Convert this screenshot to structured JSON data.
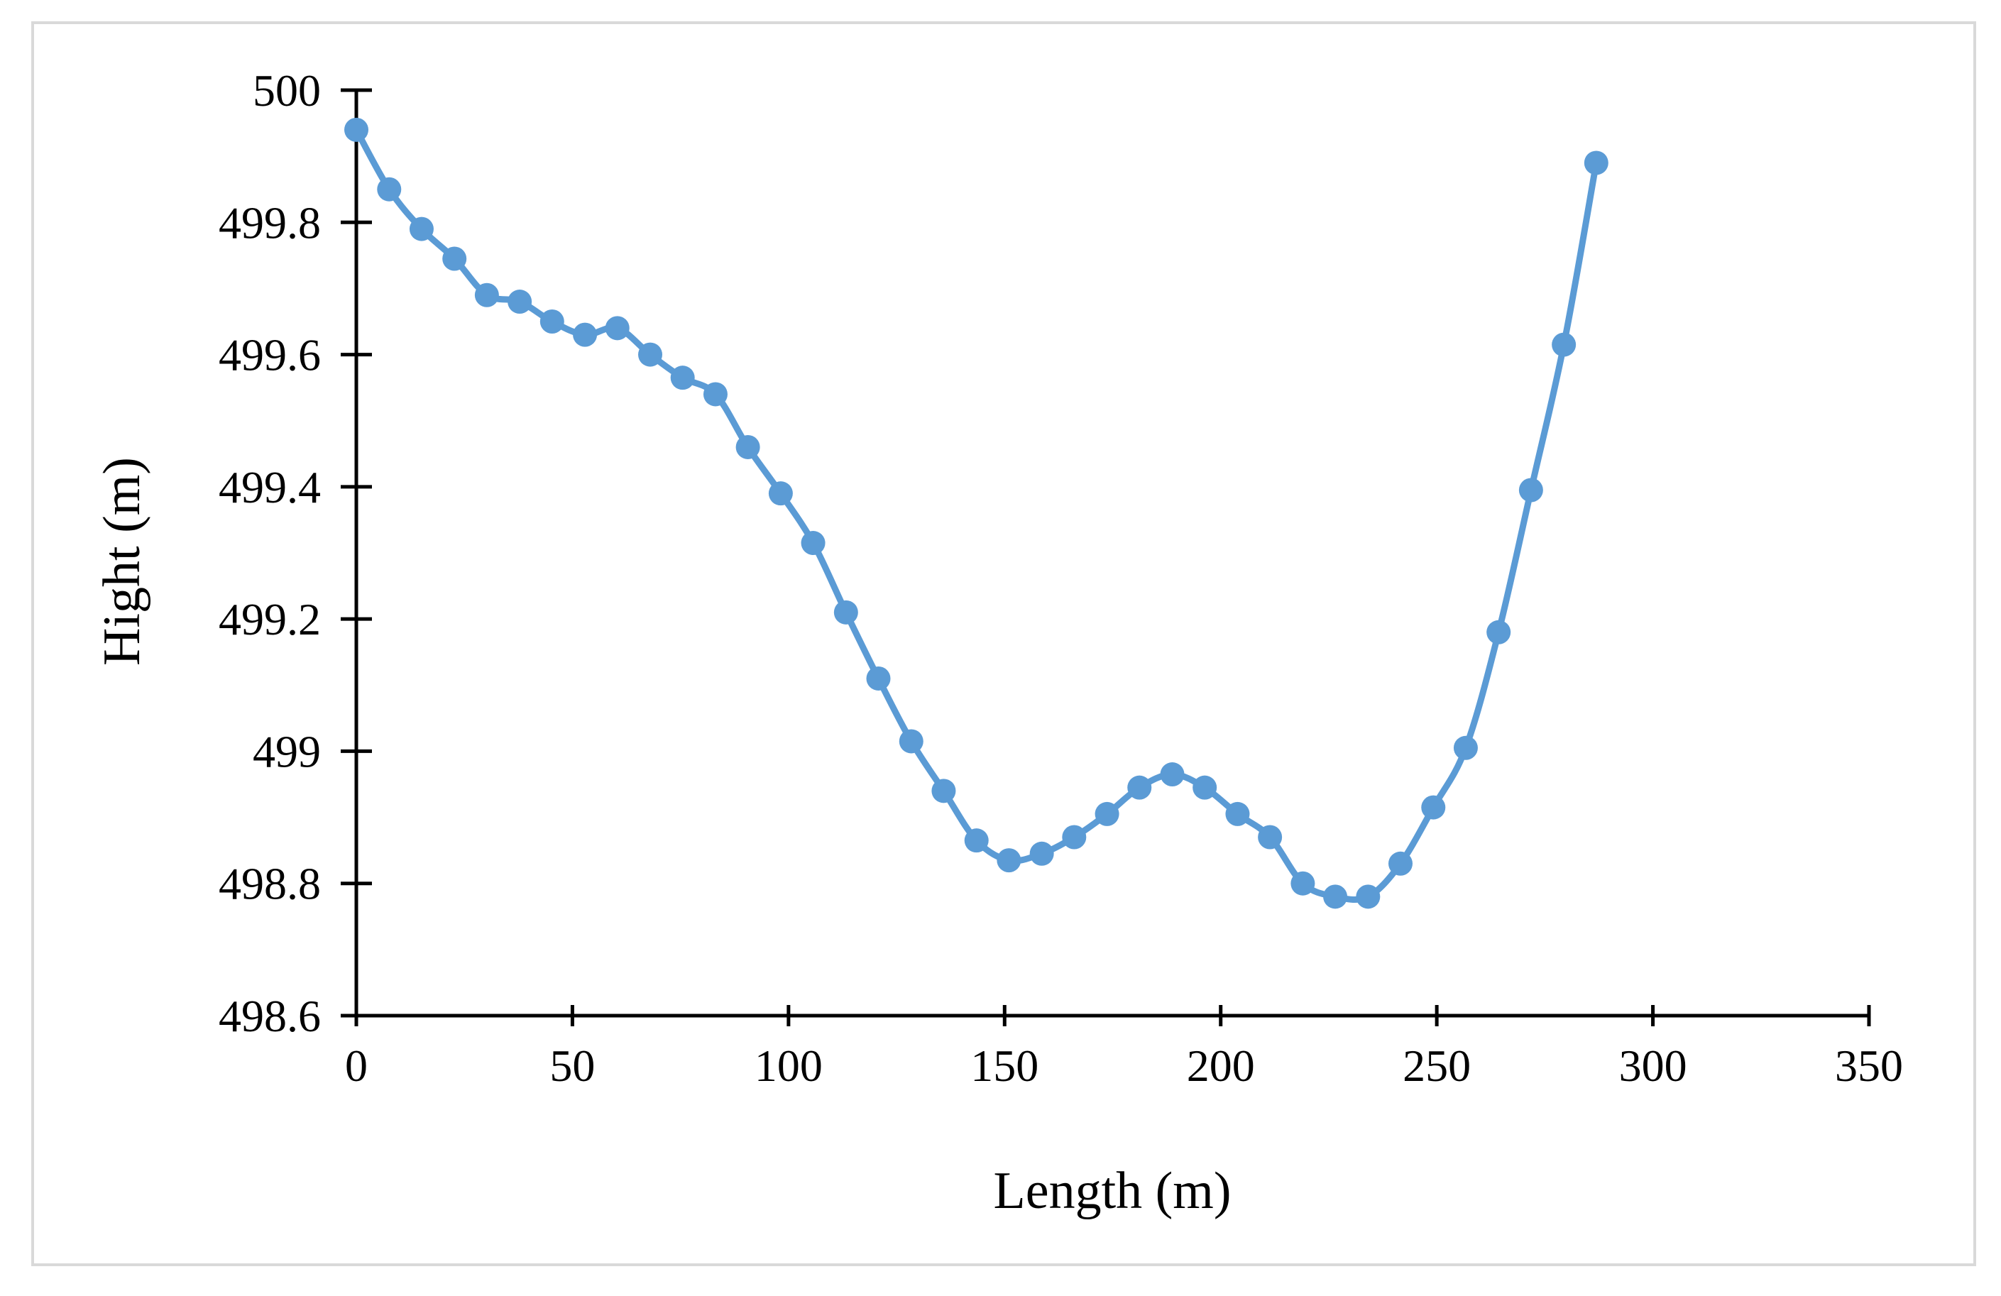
{
  "chart_data": {
    "type": "line",
    "title": "",
    "xlabel": "Length (m)",
    "ylabel": "Hight (m)",
    "xlim": [
      0,
      350
    ],
    "ylim": [
      498.6,
      500
    ],
    "x_ticks": [
      0,
      50,
      100,
      150,
      200,
      250,
      300,
      350
    ],
    "x_tick_labels": [
      "0",
      "50",
      "100",
      "150",
      "200",
      "250",
      "300",
      "350"
    ],
    "y_ticks": [
      498.6,
      498.8,
      499,
      499.2,
      499.4,
      499.6,
      499.8,
      500
    ],
    "y_tick_labels": [
      "498.6",
      "498.8",
      "499",
      "499.2",
      "499.4",
      "499.6",
      "499.8",
      "500"
    ],
    "grid": false,
    "legend": "none",
    "series": [
      {
        "color": "#5b9bd5",
        "marker": "circle",
        "smooth": true,
        "x": [
          0,
          7.6,
          15.1,
          22.7,
          30.2,
          37.8,
          45.3,
          52.9,
          60.4,
          68,
          75.5,
          83.1,
          90.6,
          98.2,
          105.7,
          113.3,
          120.8,
          128.4,
          135.9,
          143.5,
          151,
          158.6,
          166.1,
          173.7,
          181.2,
          188.8,
          196.3,
          203.9,
          211.4,
          219,
          226.5,
          234.1,
          241.6,
          249.2,
          256.7,
          264.3,
          271.8,
          279.4,
          286.9
        ],
        "y": [
          499.94,
          499.85,
          499.79,
          499.745,
          499.69,
          499.68,
          499.65,
          499.63,
          499.64,
          499.6,
          499.565,
          499.54,
          499.46,
          499.39,
          499.315,
          499.21,
          499.11,
          499.015,
          498.94,
          498.865,
          498.835,
          498.845,
          498.87,
          498.905,
          498.945,
          498.965,
          498.945,
          498.905,
          498.87,
          498.8,
          498.78,
          498.78,
          498.83,
          498.915,
          499.005,
          499.18,
          499.395,
          499.615,
          499.89
        ]
      }
    ]
  }
}
